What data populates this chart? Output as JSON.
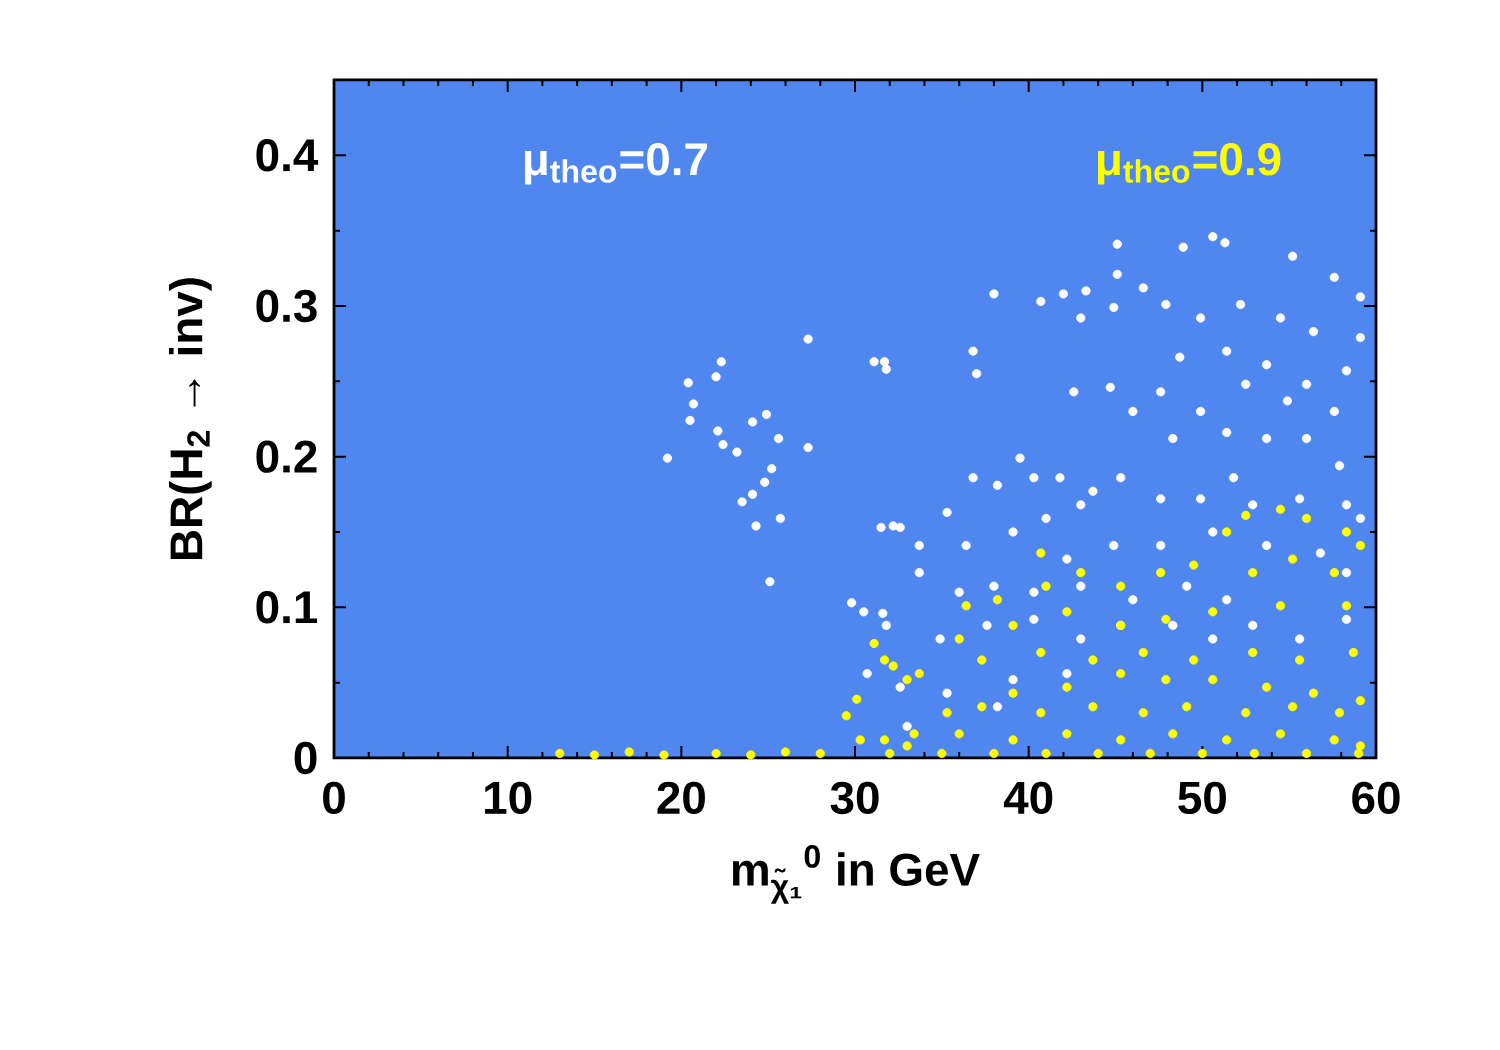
{
  "chart_data": {
    "type": "scatter",
    "xlabel": "m$_{χ̃₁}$$^{0}$ in GeV",
    "ylabel": "BR(H$_{2}$ → inv)",
    "xlim": [
      0,
      60
    ],
    "ylim": [
      0,
      0.45
    ],
    "xticks": [
      0,
      10,
      20,
      30,
      40,
      50,
      60
    ],
    "yticks": [
      0,
      0.1,
      0.2,
      0.3,
      0.4
    ],
    "legend": "top",
    "series": [
      {
        "name": "μ$_{theo}$=0.7",
        "color": "#ffffff",
        "x": [
          19.2,
          20.4,
          22.0,
          22.3,
          20.7,
          20.5,
          22.1,
          22.4,
          23.2,
          24.1,
          24.9,
          25.6,
          27.3,
          27.3,
          25.2,
          24.8,
          24.1,
          23.5,
          24.3,
          25.7,
          25.1,
          31.1,
          31.7,
          31.8,
          31.5,
          32.6,
          29.8,
          30.5,
          31.6,
          30.7,
          50.6,
          51.3,
          55.2,
          57.6,
          59.1,
          59.1,
          58.3,
          45.1,
          48.9,
          38.0,
          40.7,
          42.0,
          43.3,
          45.1,
          46.6,
          43.0,
          44.9,
          47.9,
          49.9,
          52.2,
          54.5,
          56.4,
          51.4,
          53.7,
          56.0,
          57.6,
          54.9,
          52.5,
          48.7,
          36.8,
          37.0,
          42.6,
          44.7,
          47.6,
          46.0,
          49.9,
          48.3,
          51.4,
          53.7,
          56.0,
          57.9,
          39.5,
          36.8,
          38.2,
          40.3,
          41.8,
          43.7,
          43.0,
          45.3,
          47.6,
          49.9,
          51.8,
          52.9,
          55.6,
          58.3,
          35.3,
          32.2,
          33.7,
          36.4,
          39.1,
          41.0,
          42.2,
          44.9,
          47.6,
          50.6,
          53.7,
          56.8,
          58.3,
          33.7,
          36.0,
          38.0,
          40.3,
          43.0,
          46.0,
          49.1,
          51.4,
          31.8,
          34.9,
          37.6,
          40.3,
          43.0,
          45.3,
          48.3,
          50.6,
          52.9,
          55.6,
          58.3,
          32.6,
          35.3,
          39.1,
          42.2,
          33.0,
          38.2,
          59.1
        ],
        "values": [
          0.199,
          0.249,
          0.253,
          0.263,
          0.235,
          0.224,
          0.217,
          0.208,
          0.203,
          0.223,
          0.228,
          0.212,
          0.278,
          0.206,
          0.192,
          0.183,
          0.175,
          0.17,
          0.154,
          0.159,
          0.117,
          0.263,
          0.263,
          0.258,
          0.153,
          0.153,
          0.103,
          0.097,
          0.096,
          0.056,
          0.346,
          0.342,
          0.333,
          0.319,
          0.306,
          0.279,
          0.257,
          0.341,
          0.339,
          0.308,
          0.303,
          0.308,
          0.31,
          0.321,
          0.312,
          0.292,
          0.299,
          0.301,
          0.292,
          0.301,
          0.292,
          0.283,
          0.27,
          0.261,
          0.248,
          0.23,
          0.237,
          0.248,
          0.266,
          0.27,
          0.255,
          0.243,
          0.246,
          0.243,
          0.23,
          0.23,
          0.212,
          0.216,
          0.212,
          0.212,
          0.194,
          0.199,
          0.186,
          0.181,
          0.186,
          0.186,
          0.177,
          0.168,
          0.186,
          0.172,
          0.172,
          0.186,
          0.168,
          0.172,
          0.168,
          0.163,
          0.154,
          0.141,
          0.141,
          0.15,
          0.159,
          0.132,
          0.141,
          0.141,
          0.15,
          0.141,
          0.136,
          0.123,
          0.123,
          0.11,
          0.114,
          0.11,
          0.114,
          0.105,
          0.114,
          0.105,
          0.088,
          0.079,
          0.088,
          0.092,
          0.079,
          0.088,
          0.088,
          0.079,
          0.088,
          0.079,
          0.092,
          0.047,
          0.043,
          0.052,
          0.056,
          0.021,
          0.034,
          0.159
        ]
      },
      {
        "name": "μ$_{theo}$=0.9",
        "color": "#ffff00",
        "x": [
          13,
          15,
          17,
          19,
          22,
          24,
          26,
          28,
          31.1,
          31.7,
          30.1,
          29.5,
          33.0,
          30.3,
          31.7,
          52.5,
          54.5,
          56.0,
          58.3,
          59.1,
          51.4,
          49.5,
          47.6,
          45.3,
          43.0,
          41.0,
          38.2,
          36.4,
          40.7,
          52.9,
          55.2,
          57.6,
          58.3,
          54.5,
          50.6,
          47.9,
          45.3,
          42.2,
          39.1,
          36.0,
          33.7,
          32.2,
          37.3,
          40.7,
          43.7,
          46.6,
          49.5,
          52.9,
          55.6,
          58.7,
          39.1,
          42.2,
          45.3,
          47.9,
          50.6,
          53.7,
          56.4,
          59.1,
          35.3,
          37.3,
          40.7,
          43.7,
          46.6,
          49.1,
          52.5,
          55.2,
          57.9,
          33.4,
          36.0,
          39.1,
          42.2,
          45.3,
          48.3,
          51.4,
          54.5,
          57.6,
          59.1,
          33.0,
          32,
          35,
          38,
          41,
          44,
          47,
          50,
          53,
          56,
          59
        ],
        "values": [
          0.003,
          0.002,
          0.004,
          0.002,
          0.003,
          0.002,
          0.004,
          0.003,
          0.076,
          0.065,
          0.039,
          0.028,
          0.052,
          0.012,
          0.012,
          0.161,
          0.165,
          0.159,
          0.15,
          0.141,
          0.15,
          0.128,
          0.123,
          0.114,
          0.123,
          0.114,
          0.105,
          0.101,
          0.136,
          0.123,
          0.132,
          0.123,
          0.101,
          0.101,
          0.097,
          0.092,
          0.088,
          0.097,
          0.088,
          0.079,
          0.056,
          0.061,
          0.065,
          0.07,
          0.065,
          0.07,
          0.065,
          0.07,
          0.065,
          0.07,
          0.043,
          0.047,
          0.056,
          0.052,
          0.052,
          0.047,
          0.043,
          0.038,
          0.03,
          0.034,
          0.03,
          0.034,
          0.03,
          0.034,
          0.03,
          0.034,
          0.03,
          0.016,
          0.016,
          0.012,
          0.016,
          0.012,
          0.016,
          0.012,
          0.016,
          0.012,
          0.008,
          0.008,
          0.003,
          0.003,
          0.003,
          0.003,
          0.003,
          0.003,
          0.003,
          0.003,
          0.003,
          0.003
        ]
      }
    ]
  }
}
